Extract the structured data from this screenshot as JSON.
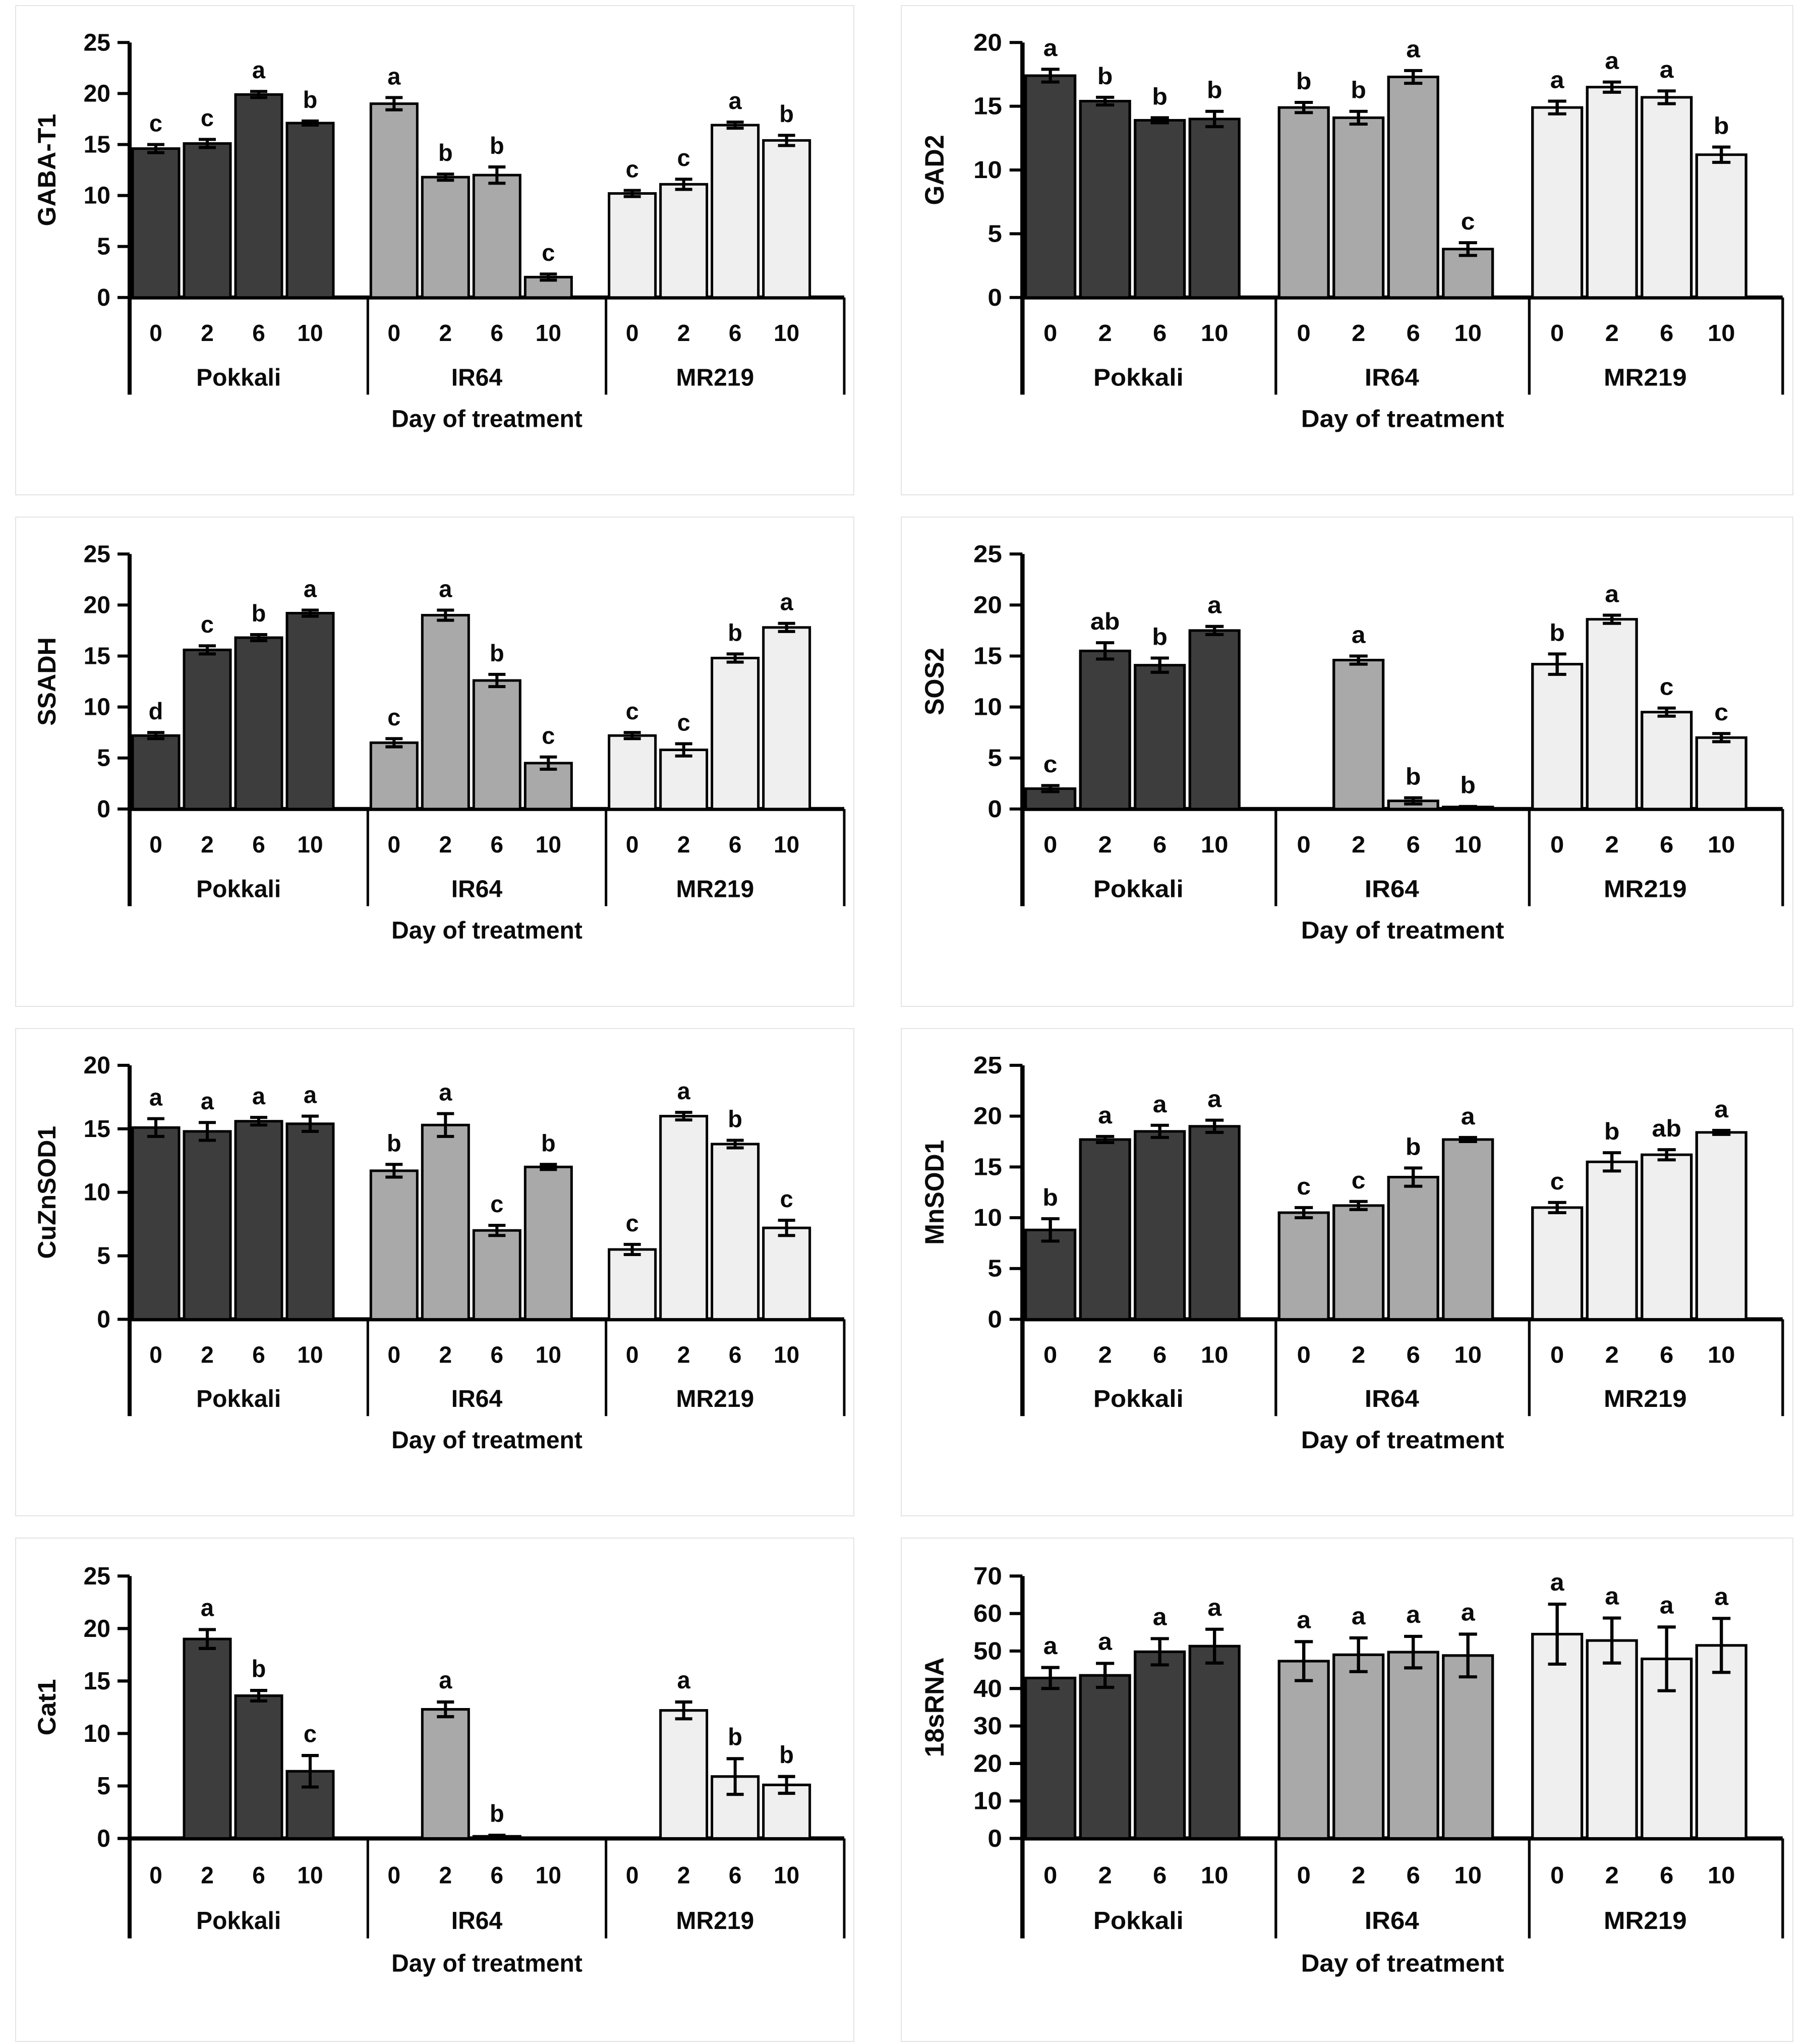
{
  "figure": {
    "xlabel": "Day of treatment",
    "group_names": [
      "Pokkali",
      "IR64",
      "MR219"
    ],
    "day_labels": [
      "0",
      "2",
      "6",
      "10"
    ]
  },
  "colors": {
    "pokkali_fill": "#3d3d3d",
    "ir64_fill": "#a9a9a9",
    "mr219_fill": "#efefef",
    "outline": "#000000",
    "error_bar": "#000000",
    "text": "#0a0a0a",
    "panel_border": "#e4e4e4",
    "background": "#ffffff"
  },
  "chart_data": [
    {
      "type": "bar",
      "ylabel": "GABA-T1",
      "xlabel": "Day of treatment",
      "ylim": [
        0,
        25
      ],
      "ytick_step": 5,
      "categories": [
        "0",
        "2",
        "6",
        "10"
      ],
      "grid": false,
      "series": [
        {
          "name": "Pokkali",
          "values": [
            14.6,
            15.1,
            19.9,
            17.1
          ],
          "errors": [
            0.4,
            0.4,
            0.3,
            0.2
          ],
          "letters": [
            "c",
            "c",
            "a",
            "b"
          ]
        },
        {
          "name": "IR64",
          "values": [
            19.0,
            11.8,
            12.0,
            2.0
          ],
          "errors": [
            0.6,
            0.3,
            0.8,
            0.3
          ],
          "letters": [
            "a",
            "b",
            "b",
            "c"
          ]
        },
        {
          "name": "MR219",
          "values": [
            10.2,
            11.1,
            16.9,
            15.4
          ],
          "errors": [
            0.3,
            0.5,
            0.3,
            0.5
          ],
          "letters": [
            "c",
            "c",
            "a",
            "b"
          ]
        }
      ]
    },
    {
      "type": "bar",
      "ylabel": "GAD2",
      "xlabel": "Day of treatment",
      "ylim": [
        0,
        20
      ],
      "ytick_step": 5,
      "categories": [
        "0",
        "2",
        "6",
        "10"
      ],
      "grid": false,
      "series": [
        {
          "name": "Pokkali",
          "values": [
            17.4,
            15.4,
            13.9,
            14.0
          ],
          "errors": [
            0.5,
            0.3,
            0.2,
            0.6
          ],
          "letters": [
            "a",
            "b",
            "b",
            "b"
          ]
        },
        {
          "name": "IR64",
          "values": [
            14.9,
            14.1,
            17.3,
            3.8
          ],
          "errors": [
            0.4,
            0.5,
            0.5,
            0.5
          ],
          "letters": [
            "b",
            "b",
            "a",
            "c"
          ]
        },
        {
          "name": "MR219",
          "values": [
            14.9,
            16.5,
            15.7,
            11.2
          ],
          "errors": [
            0.5,
            0.4,
            0.5,
            0.6
          ],
          "letters": [
            "a",
            "a",
            "a",
            "b"
          ]
        }
      ]
    },
    {
      "type": "bar",
      "ylabel": "SSADH",
      "xlabel": "Day of treatment",
      "ylim": [
        0,
        25
      ],
      "ytick_step": 5,
      "categories": [
        "0",
        "2",
        "6",
        "10"
      ],
      "grid": false,
      "series": [
        {
          "name": "Pokkali",
          "values": [
            7.2,
            15.6,
            16.8,
            19.2
          ],
          "errors": [
            0.3,
            0.4,
            0.3,
            0.3
          ],
          "letters": [
            "d",
            "c",
            "b",
            "a"
          ]
        },
        {
          "name": "IR64",
          "values": [
            6.5,
            19.0,
            12.6,
            4.5
          ],
          "errors": [
            0.4,
            0.5,
            0.6,
            0.6
          ],
          "letters": [
            "c",
            "a",
            "b",
            "c"
          ]
        },
        {
          "name": "MR219",
          "values": [
            7.2,
            5.8,
            14.8,
            17.8
          ],
          "errors": [
            0.3,
            0.6,
            0.4,
            0.4
          ],
          "letters": [
            "c",
            "c",
            "b",
            "a"
          ]
        }
      ]
    },
    {
      "type": "bar",
      "ylabel": "SOS2",
      "xlabel": "Day of treatment",
      "ylim": [
        0,
        25
      ],
      "ytick_step": 5,
      "categories": [
        "0",
        "2",
        "6",
        "10"
      ],
      "grid": false,
      "series": [
        {
          "name": "Pokkali",
          "values": [
            2.0,
            15.5,
            14.1,
            17.5
          ],
          "errors": [
            0.3,
            0.8,
            0.7,
            0.4
          ],
          "letters": [
            "c",
            "ab",
            "b",
            "a"
          ]
        },
        {
          "name": "IR64",
          "values": [
            null,
            14.6,
            0.8,
            0.2
          ],
          "errors": [
            null,
            0.4,
            0.3,
            0.05
          ],
          "letters": [
            "",
            "a",
            "b",
            "b"
          ]
        },
        {
          "name": "MR219",
          "values": [
            14.2,
            18.6,
            9.5,
            7.0
          ],
          "errors": [
            1.0,
            0.4,
            0.4,
            0.4
          ],
          "letters": [
            "b",
            "a",
            "c",
            "c"
          ]
        }
      ]
    },
    {
      "type": "bar",
      "ylabel": "CuZnSOD1",
      "xlabel": "Day of treatment",
      "ylim": [
        0,
        20
      ],
      "ytick_step": 5,
      "categories": [
        "0",
        "2",
        "6",
        "10"
      ],
      "grid": false,
      "series": [
        {
          "name": "Pokkali",
          "values": [
            15.1,
            14.8,
            15.6,
            15.4
          ],
          "errors": [
            0.7,
            0.7,
            0.3,
            0.6
          ],
          "letters": [
            "a",
            "a",
            "a",
            "a"
          ]
        },
        {
          "name": "IR64",
          "values": [
            11.7,
            15.3,
            7.0,
            12.0
          ],
          "errors": [
            0.5,
            0.9,
            0.4,
            0.2
          ],
          "letters": [
            "b",
            "a",
            "c",
            "b"
          ]
        },
        {
          "name": "MR219",
          "values": [
            5.5,
            16.0,
            13.8,
            7.2
          ],
          "errors": [
            0.4,
            0.3,
            0.3,
            0.6
          ],
          "letters": [
            "c",
            "a",
            "b",
            "c"
          ]
        }
      ]
    },
    {
      "type": "bar",
      "ylabel": "MnSOD1",
      "xlabel": "Day of treatment",
      "ylim": [
        0,
        25
      ],
      "ytick_step": 5,
      "categories": [
        "0",
        "2",
        "6",
        "10"
      ],
      "grid": false,
      "series": [
        {
          "name": "Pokkali",
          "values": [
            8.8,
            17.7,
            18.5,
            19.0
          ],
          "errors": [
            1.1,
            0.3,
            0.6,
            0.6
          ],
          "letters": [
            "b",
            "a",
            "a",
            "a"
          ]
        },
        {
          "name": "IR64",
          "values": [
            10.5,
            11.2,
            14.0,
            17.7
          ],
          "errors": [
            0.5,
            0.4,
            0.9,
            0.2
          ],
          "letters": [
            "c",
            "c",
            "b",
            "a"
          ]
        },
        {
          "name": "MR219",
          "values": [
            11.0,
            15.5,
            16.2,
            18.4
          ],
          "errors": [
            0.5,
            0.9,
            0.5,
            0.2
          ],
          "letters": [
            "c",
            "b",
            "ab",
            "a"
          ]
        }
      ]
    },
    {
      "type": "bar",
      "ylabel": "Cat1",
      "xlabel": "Day of treatment",
      "ylim": [
        0,
        25
      ],
      "ytick_step": 5,
      "categories": [
        "0",
        "2",
        "6",
        "10"
      ],
      "grid": false,
      "series": [
        {
          "name": "Pokkali",
          "values": [
            null,
            19.0,
            13.6,
            6.4
          ],
          "errors": [
            null,
            0.9,
            0.5,
            1.5
          ],
          "letters": [
            "",
            "a",
            "b",
            "c"
          ]
        },
        {
          "name": "IR64",
          "values": [
            null,
            12.3,
            0.2,
            null
          ],
          "errors": [
            null,
            0.7,
            0.1,
            null
          ],
          "letters": [
            "",
            "a",
            "b",
            ""
          ]
        },
        {
          "name": "MR219",
          "values": [
            null,
            12.2,
            5.9,
            5.1
          ],
          "errors": [
            null,
            0.8,
            1.7,
            0.8
          ],
          "letters": [
            "",
            "a",
            "b",
            "b"
          ]
        }
      ]
    },
    {
      "type": "bar",
      "ylabel": "18sRNA",
      "xlabel": "Day of treatment",
      "ylim": [
        0,
        70
      ],
      "ytick_step": 10,
      "categories": [
        "0",
        "2",
        "6",
        "10"
      ],
      "grid": false,
      "series": [
        {
          "name": "Pokkali",
          "values": [
            42.8,
            43.5,
            49.8,
            51.3
          ],
          "errors": [
            2.8,
            3.2,
            3.5,
            4.5
          ],
          "letters": [
            "a",
            "a",
            "a",
            "a"
          ]
        },
        {
          "name": "IR64",
          "values": [
            47.3,
            49.0,
            49.7,
            48.8
          ],
          "errors": [
            5.2,
            4.5,
            4.2,
            5.7
          ],
          "letters": [
            "a",
            "a",
            "a",
            "a"
          ]
        },
        {
          "name": "MR219",
          "values": [
            54.5,
            52.8,
            47.9,
            51.5
          ],
          "errors": [
            8.0,
            6.0,
            8.5,
            7.2
          ],
          "letters": [
            "a",
            "a",
            "a",
            "a"
          ]
        }
      ]
    }
  ]
}
